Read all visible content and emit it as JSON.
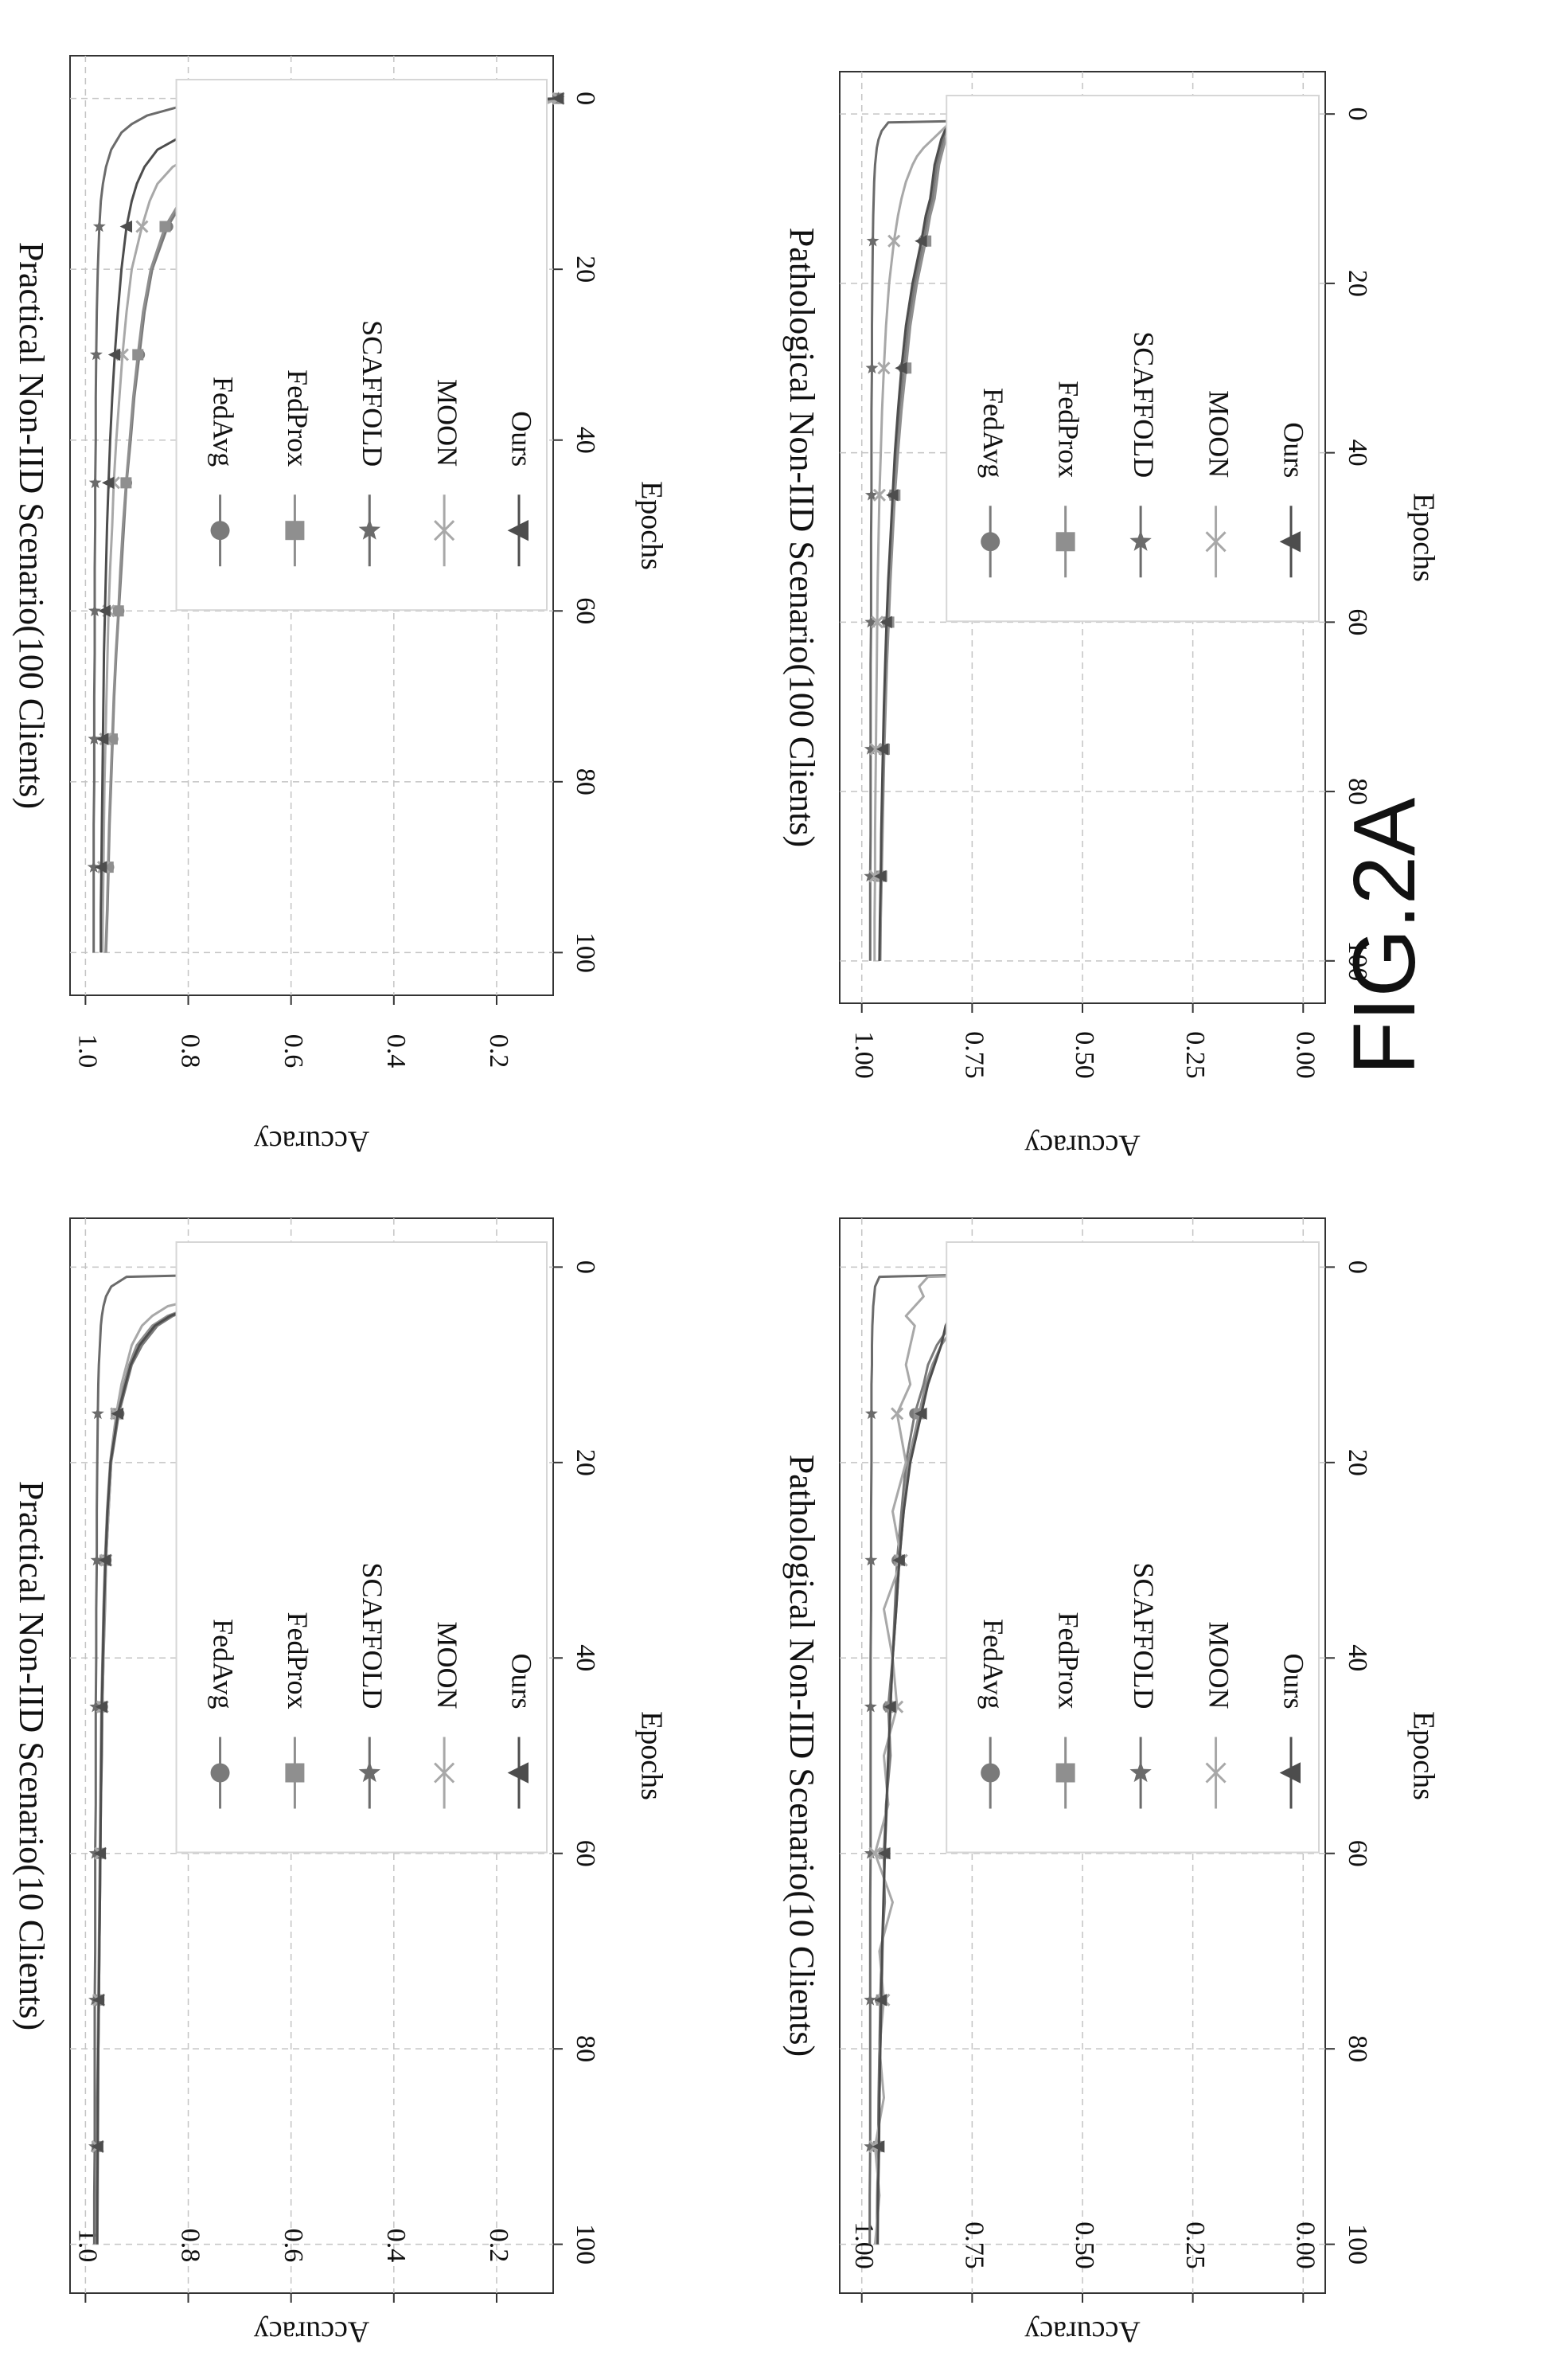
{
  "figure_label": "FIG.2A",
  "colors": {
    "FedAvg": "#7a7a7a",
    "FedProx": "#8f8f8f",
    "SCAFFOLD": "#6b6b6b",
    "MOON": "#a8a8a8",
    "Ours": "#4d4d4d",
    "axis": "#333333",
    "grid": "#c4c4c4"
  },
  "chart_data": [
    {
      "id": "practical-10",
      "type": "line",
      "title": "Practical Non-IID Scenario(10 Clients)",
      "xlabel": "Epochs",
      "ylabel": "Accuracy",
      "xlim": [
        -5,
        105
      ],
      "ylim": [
        0.09,
        1.03
      ],
      "xticks": [
        0,
        20,
        40,
        60,
        80,
        100
      ],
      "yticks": [
        0.2,
        0.4,
        0.6,
        0.8,
        1.0
      ],
      "ytick_labels": [
        "0.2",
        "0.4",
        "0.6",
        "0.8",
        "1.0"
      ],
      "grid": true,
      "legend_position": "top-right",
      "markers_at": [
        0,
        15,
        30,
        45,
        60,
        75,
        90
      ],
      "x": [
        0,
        1,
        2,
        3,
        4,
        5,
        6,
        8,
        10,
        12,
        15,
        20,
        25,
        30,
        35,
        40,
        45,
        50,
        55,
        60,
        65,
        70,
        75,
        80,
        85,
        90,
        95,
        100
      ],
      "series": [
        {
          "name": "FedAvg",
          "marker": "circle",
          "values": [
            0.12,
            0.3,
            0.52,
            0.68,
            0.78,
            0.83,
            0.86,
            0.89,
            0.91,
            0.92,
            0.935,
            0.95,
            0.955,
            0.96,
            0.962,
            0.965,
            0.967,
            0.968,
            0.97,
            0.971,
            0.972,
            0.973,
            0.974,
            0.975,
            0.976,
            0.977,
            0.977,
            0.978
          ]
        },
        {
          "name": "FedProx",
          "marker": "square",
          "values": [
            0.12,
            0.32,
            0.54,
            0.7,
            0.79,
            0.84,
            0.87,
            0.9,
            0.915,
            0.925,
            0.94,
            0.952,
            0.958,
            0.962,
            0.965,
            0.967,
            0.969,
            0.97,
            0.971,
            0.972,
            0.973,
            0.974,
            0.975,
            0.976,
            0.977,
            0.977,
            0.978,
            0.978
          ]
        },
        {
          "name": "SCAFFOLD",
          "marker": "star",
          "values": [
            0.12,
            0.92,
            0.95,
            0.96,
            0.965,
            0.968,
            0.97,
            0.972,
            0.974,
            0.975,
            0.976,
            0.977,
            0.978,
            0.978,
            0.979,
            0.979,
            0.98,
            0.98,
            0.98,
            0.981,
            0.981,
            0.981,
            0.982,
            0.982,
            0.982,
            0.982,
            0.983,
            0.983
          ]
        },
        {
          "name": "MOON",
          "marker": "x",
          "values": [
            0.12,
            0.35,
            0.6,
            0.76,
            0.84,
            0.87,
            0.89,
            0.91,
            0.92,
            0.93,
            0.94,
            0.95,
            0.955,
            0.96,
            0.963,
            0.965,
            0.967,
            0.969,
            0.97,
            0.971,
            0.972,
            0.973,
            0.974,
            0.975,
            0.975,
            0.976,
            0.976,
            0.977
          ]
        },
        {
          "name": "Ours",
          "marker": "triangle",
          "values": [
            0.12,
            0.31,
            0.53,
            0.69,
            0.785,
            0.835,
            0.865,
            0.895,
            0.912,
            0.922,
            0.937,
            0.951,
            0.957,
            0.961,
            0.964,
            0.966,
            0.968,
            0.969,
            0.97,
            0.971,
            0.972,
            0.973,
            0.974,
            0.975,
            0.976,
            0.976,
            0.977,
            0.977
          ]
        }
      ]
    },
    {
      "id": "practical-100",
      "type": "line",
      "title": "Practical Non-IID Scenario(100 Clients)",
      "xlabel": "Epochs",
      "ylabel": "Accuracy",
      "xlim": [
        -5,
        105
      ],
      "ylim": [
        0.09,
        1.03
      ],
      "xticks": [
        0,
        20,
        40,
        60,
        80,
        100
      ],
      "yticks": [
        0.2,
        0.4,
        0.6,
        0.8,
        1.0
      ],
      "ytick_labels": [
        "0.2",
        "0.4",
        "0.6",
        "0.8",
        "1.0"
      ],
      "grid": true,
      "legend_position": "top-right",
      "markers_at": [
        0,
        15,
        30,
        45,
        60,
        75,
        90
      ],
      "x": [
        0,
        1,
        2,
        3,
        4,
        5,
        6,
        8,
        10,
        12,
        15,
        20,
        25,
        30,
        35,
        40,
        45,
        50,
        55,
        60,
        65,
        70,
        75,
        80,
        85,
        90,
        95,
        100
      ],
      "series": [
        {
          "name": "FedAvg",
          "marker": "circle",
          "values": [
            0.08,
            0.15,
            0.2,
            0.33,
            0.5,
            0.6,
            0.67,
            0.75,
            0.79,
            0.81,
            0.84,
            0.87,
            0.885,
            0.895,
            0.905,
            0.912,
            0.92,
            0.925,
            0.93,
            0.935,
            0.94,
            0.944,
            0.947,
            0.95,
            0.953,
            0.955,
            0.957,
            0.96
          ]
        },
        {
          "name": "FedProx",
          "marker": "square",
          "values": [
            0.08,
            0.16,
            0.22,
            0.35,
            0.52,
            0.62,
            0.68,
            0.755,
            0.795,
            0.815,
            0.845,
            0.873,
            0.888,
            0.898,
            0.907,
            0.914,
            0.921,
            0.927,
            0.932,
            0.936,
            0.941,
            0.945,
            0.948,
            0.951,
            0.954,
            0.956,
            0.958,
            0.961
          ]
        },
        {
          "name": "SCAFFOLD",
          "marker": "star",
          "values": [
            0.08,
            0.82,
            0.88,
            0.91,
            0.93,
            0.94,
            0.95,
            0.96,
            0.966,
            0.97,
            0.973,
            0.976,
            0.978,
            0.979,
            0.98,
            0.98,
            0.981,
            0.981,
            0.982,
            0.982,
            0.982,
            0.983,
            0.983,
            0.983,
            0.984,
            0.984,
            0.984,
            0.984
          ]
        },
        {
          "name": "MOON",
          "marker": "x",
          "values": [
            0.08,
            0.12,
            0.2,
            0.38,
            0.6,
            0.7,
            0.77,
            0.83,
            0.86,
            0.875,
            0.89,
            0.91,
            0.92,
            0.928,
            0.934,
            0.94,
            0.945,
            0.948,
            0.952,
            0.955,
            0.957,
            0.959,
            0.961,
            0.963,
            0.964,
            0.965,
            0.966,
            0.967
          ]
        },
        {
          "name": "Ours",
          "marker": "triangle",
          "values": [
            0.08,
            0.35,
            0.6,
            0.74,
            0.8,
            0.83,
            0.86,
            0.885,
            0.9,
            0.91,
            0.92,
            0.93,
            0.937,
            0.943,
            0.948,
            0.952,
            0.955,
            0.958,
            0.96,
            0.962,
            0.964,
            0.965,
            0.966,
            0.967,
            0.968,
            0.969,
            0.97,
            0.97
          ]
        }
      ]
    },
    {
      "id": "pathological-10",
      "type": "line",
      "title": "Pathological Non-IID Scenario(10 Clients)",
      "xlabel": "Epochs",
      "ylabel": "Accuracy",
      "xlim": [
        -5,
        105
      ],
      "ylim": [
        -0.05,
        1.05
      ],
      "xticks": [
        0,
        20,
        40,
        60,
        80,
        100
      ],
      "yticks": [
        0.0,
        0.25,
        0.5,
        0.75,
        1.0
      ],
      "ytick_labels": [
        "0.00",
        "0.25",
        "0.50",
        "0.75",
        "1.00"
      ],
      "grid": true,
      "legend_position": "top-right",
      "markers_at": [
        0,
        15,
        30,
        45,
        60,
        75,
        90
      ],
      "x": [
        0,
        1,
        2,
        3,
        4,
        5,
        6,
        8,
        10,
        12,
        15,
        20,
        25,
        30,
        35,
        40,
        45,
        50,
        55,
        60,
        65,
        70,
        75,
        80,
        85,
        90,
        95,
        100
      ],
      "series": [
        {
          "name": "FedAvg",
          "marker": "circle",
          "values": [
            0.02,
            0.4,
            0.55,
            0.66,
            0.73,
            0.77,
            0.8,
            0.83,
            0.85,
            0.86,
            0.88,
            0.9,
            0.91,
            0.92,
            0.925,
            0.93,
            0.94,
            0.935,
            0.945,
            0.95,
            0.948,
            0.955,
            0.958,
            0.96,
            0.962,
            0.963,
            0.965,
            0.966
          ]
        },
        {
          "name": "FedProx",
          "marker": "square",
          "values": [
            0.04,
            0.38,
            0.53,
            0.64,
            0.72,
            0.76,
            0.79,
            0.82,
            0.84,
            0.855,
            0.87,
            0.895,
            0.905,
            0.915,
            0.922,
            0.93,
            0.935,
            0.94,
            0.943,
            0.948,
            0.95,
            0.953,
            0.955,
            0.958,
            0.96,
            0.962,
            0.963,
            0.965
          ]
        },
        {
          "name": "SCAFFOLD",
          "marker": "star",
          "values": [
            0.04,
            0.96,
            0.97,
            0.972,
            0.974,
            0.975,
            0.976,
            0.977,
            0.977,
            0.978,
            0.978,
            0.978,
            0.979,
            0.979,
            0.979,
            0.98,
            0.98,
            0.98,
            0.98,
            0.98,
            0.981,
            0.981,
            0.981,
            0.981,
            0.981,
            0.981,
            0.982,
            0.982
          ]
        },
        {
          "name": "MOON",
          "marker": "x",
          "values": [
            0.04,
            0.85,
            0.87,
            0.86,
            0.88,
            0.9,
            0.88,
            0.89,
            0.9,
            0.89,
            0.92,
            0.9,
            0.93,
            0.91,
            0.95,
            0.93,
            0.92,
            0.95,
            0.94,
            0.97,
            0.93,
            0.96,
            0.95,
            0.96,
            0.95,
            0.97,
            0.96,
            0.97
          ]
        },
        {
          "name": "Ours",
          "marker": "triangle",
          "values": [
            0.02,
            0.73,
            0.76,
            0.78,
            0.79,
            0.8,
            0.81,
            0.82,
            0.835,
            0.85,
            0.865,
            0.89,
            0.905,
            0.915,
            0.922,
            0.93,
            0.935,
            0.94,
            0.944,
            0.948,
            0.951,
            0.954,
            0.956,
            0.958,
            0.96,
            0.961,
            0.963,
            0.964
          ]
        }
      ]
    },
    {
      "id": "pathological-100",
      "type": "line",
      "title": "Pathological Non-IID Scenario(100 Clients)",
      "xlabel": "Epochs",
      "ylabel": "Accuracy",
      "xlim": [
        -5,
        105
      ],
      "ylim": [
        -0.05,
        1.05
      ],
      "xticks": [
        0,
        20,
        40,
        60,
        80,
        100
      ],
      "yticks": [
        0.0,
        0.25,
        0.5,
        0.75,
        1.0
      ],
      "ytick_labels": [
        "0.00",
        "0.25",
        "0.50",
        "0.75",
        "1.00"
      ],
      "grid": true,
      "legend_position": "top-right",
      "markers_at": [
        0,
        15,
        30,
        45,
        60,
        75,
        90
      ],
      "x": [
        0,
        1,
        2,
        3,
        4,
        5,
        6,
        8,
        10,
        12,
        15,
        20,
        25,
        30,
        35,
        40,
        45,
        50,
        55,
        60,
        65,
        70,
        75,
        80,
        85,
        90,
        95,
        100
      ],
      "series": [
        {
          "name": "FedAvg",
          "marker": "circle",
          "values": [
            0.0,
            0.8,
            0.81,
            0.815,
            0.82,
            0.825,
            0.83,
            0.835,
            0.84,
            0.85,
            0.86,
            0.88,
            0.895,
            0.905,
            0.915,
            0.922,
            0.928,
            0.934,
            0.938,
            0.942,
            0.945,
            0.948,
            0.951,
            0.953,
            0.955,
            0.957,
            0.958,
            0.96
          ]
        },
        {
          "name": "FedProx",
          "marker": "square",
          "values": [
            0.0,
            0.79,
            0.8,
            0.81,
            0.815,
            0.82,
            0.825,
            0.83,
            0.835,
            0.845,
            0.855,
            0.875,
            0.89,
            0.9,
            0.91,
            0.918,
            0.925,
            0.93,
            0.935,
            0.939,
            0.943,
            0.946,
            0.949,
            0.951,
            0.953,
            0.955,
            0.957,
            0.958
          ]
        },
        {
          "name": "SCAFFOLD",
          "marker": "star",
          "values": [
            0.0,
            0.94,
            0.955,
            0.962,
            0.966,
            0.968,
            0.97,
            0.972,
            0.973,
            0.974,
            0.975,
            0.976,
            0.977,
            0.977,
            0.978,
            0.978,
            0.978,
            0.979,
            0.979,
            0.979,
            0.98,
            0.98,
            0.98,
            0.98,
            0.98,
            0.981,
            0.981,
            0.981
          ]
        },
        {
          "name": "MOON",
          "marker": "x",
          "values": [
            0.0,
            0.8,
            0.82,
            0.84,
            0.86,
            0.875,
            0.885,
            0.9,
            0.91,
            0.918,
            0.927,
            0.938,
            0.945,
            0.95,
            0.954,
            0.957,
            0.96,
            0.962,
            0.964,
            0.965,
            0.966,
            0.967,
            0.968,
            0.969,
            0.97,
            0.97,
            0.971,
            0.971
          ]
        },
        {
          "name": "Ours",
          "marker": "triangle",
          "values": [
            0.0,
            0.8,
            0.812,
            0.82,
            0.825,
            0.83,
            0.835,
            0.84,
            0.845,
            0.855,
            0.865,
            0.885,
            0.9,
            0.91,
            0.918,
            0.925,
            0.93,
            0.935,
            0.94,
            0.944,
            0.947,
            0.95,
            0.952,
            0.954,
            0.956,
            0.957,
            0.959,
            0.96
          ]
        }
      ]
    }
  ]
}
